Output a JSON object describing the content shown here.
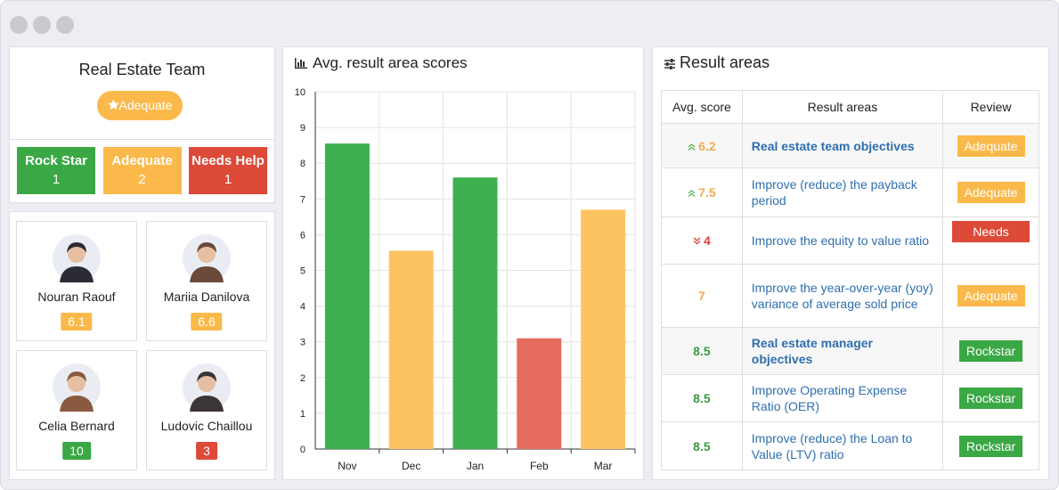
{
  "team": {
    "title": "Real Estate Team",
    "rating": "Adequate",
    "rating_color": "#fbb94b",
    "summary": [
      {
        "label": "Rock Star",
        "count": 1,
        "color": "#3aa845"
      },
      {
        "label": "Adequate",
        "count": 2,
        "color": "#fbb94b"
      },
      {
        "label": "Needs Help",
        "count": 1,
        "color": "#dd4a38"
      }
    ]
  },
  "people": [
    {
      "name": "Nouran Raouf",
      "score": 6.1,
      "color": "#fbb94b"
    },
    {
      "name": "Mariia Danilova",
      "score": 6.6,
      "color": "#fbb94b"
    },
    {
      "name": "Celia Bernard",
      "score": 10,
      "color": "#3aa845"
    },
    {
      "name": "Ludovic Chaillou",
      "score": 3,
      "color": "#dd4a38"
    }
  ],
  "chart_data": {
    "type": "bar",
    "title": "Avg. result area scores",
    "categories": [
      "Nov",
      "Dec",
      "Jan",
      "Feb",
      "Mar"
    ],
    "values": [
      8.55,
      5.55,
      7.6,
      3.1,
      6.7
    ],
    "colors": [
      "#3daf4f",
      "#fec361",
      "#3daf4f",
      "#e46b5d",
      "#fec361"
    ],
    "ylim": [
      0,
      10
    ],
    "yticks": [
      0,
      1,
      2,
      3,
      4,
      5,
      6,
      7,
      8,
      9,
      10
    ],
    "grid": true
  },
  "result_areas": {
    "title": "Result areas",
    "columns": [
      "Avg. score",
      "Result areas",
      "Review"
    ],
    "rows": [
      {
        "score": 6.2,
        "trend": "up",
        "score_color": "#f0ad4e",
        "area": "Real estate team objectives",
        "group": true,
        "review": "Adequate",
        "review_color": "#fbb94b"
      },
      {
        "score": 7.5,
        "trend": "up",
        "score_color": "#f0ad4e",
        "area": "Improve (reduce) the payback period",
        "group": false,
        "review": "Adequate",
        "review_color": "#fbb94b"
      },
      {
        "score": 4,
        "trend": "down",
        "score_color": "#d9443a",
        "area": "Improve the equity to value ratio",
        "group": false,
        "review": "Needs Help",
        "review_color": "#dd4a38"
      },
      {
        "score": 7,
        "trend": null,
        "score_color": "#f0ad4e",
        "area": "Improve the year-over-year (yoy) variance of average sold price",
        "group": false,
        "review": "Adequate",
        "review_color": "#fbb94b"
      },
      {
        "score": 8.5,
        "trend": null,
        "score_color": "#3a9a44",
        "area": "Real estate manager objectives",
        "group": true,
        "review": "Rockstar",
        "review_color": "#3aa845"
      },
      {
        "score": 8.5,
        "trend": null,
        "score_color": "#3a9a44",
        "area": "Improve Operating Expense Ratio (OER)",
        "group": false,
        "review": "Rockstar",
        "review_color": "#3aa845"
      },
      {
        "score": 8.5,
        "trend": null,
        "score_color": "#3a9a44",
        "area": "Improve (reduce) the Loan to Value (LTV) ratio",
        "group": false,
        "review": "Rockstar",
        "review_color": "#3aa845"
      }
    ]
  }
}
